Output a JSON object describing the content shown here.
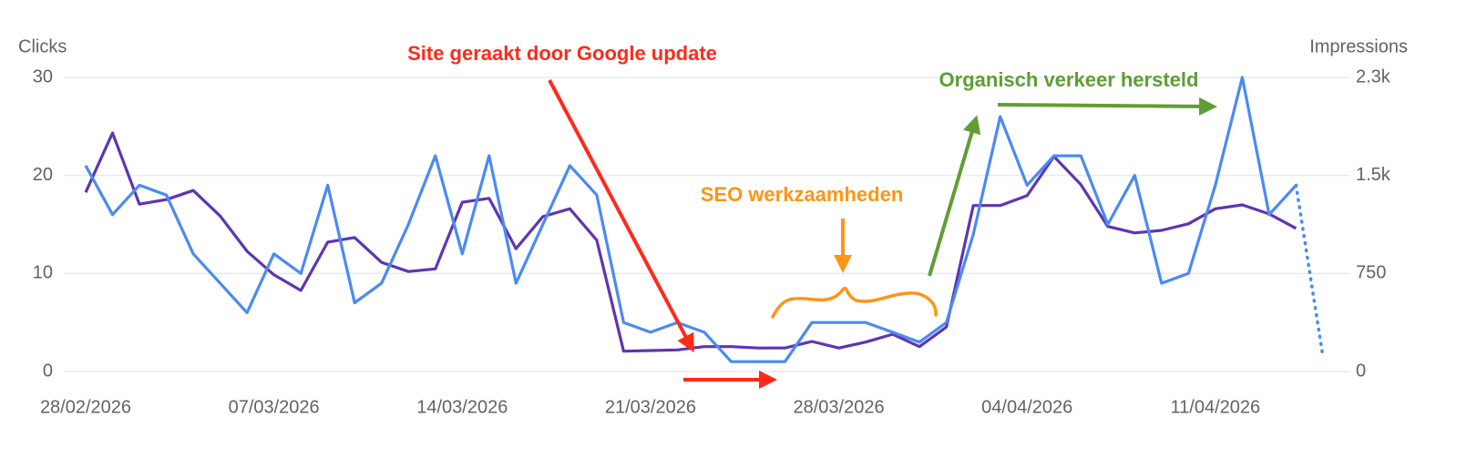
{
  "chart_data": {
    "type": "line",
    "y_title": "Clicks",
    "y2_title": "Impressions",
    "x": [
      "28/02/2026",
      "01/03/2026",
      "02/03/2026",
      "03/03/2026",
      "04/03/2026",
      "05/03/2026",
      "06/03/2026",
      "07/03/2026",
      "08/03/2026",
      "09/03/2026",
      "10/03/2026",
      "11/03/2026",
      "12/03/2026",
      "13/03/2026",
      "14/03/2026",
      "15/03/2026",
      "16/03/2026",
      "17/03/2026",
      "18/03/2026",
      "19/03/2026",
      "20/03/2026",
      "21/03/2026",
      "22/03/2026",
      "23/03/2026",
      "24/03/2026",
      "25/03/2026",
      "26/03/2026",
      "27/03/2026",
      "28/03/2026",
      "29/03/2026",
      "30/03/2026",
      "31/03/2026",
      "01/04/2026",
      "02/04/2026",
      "03/04/2026",
      "04/04/2026",
      "05/04/2026",
      "06/04/2026",
      "07/04/2026",
      "08/04/2026",
      "09/04/2026",
      "10/04/2026",
      "11/04/2026",
      "12/04/2026",
      "13/04/2026",
      "14/04/2026",
      "15/04/2026"
    ],
    "xticks": [
      "28/02/2026",
      "07/03/2026",
      "14/03/2026",
      "21/03/2026",
      "28/03/2026",
      "04/04/2026",
      "11/04/2026"
    ],
    "series": [
      {
        "name": "Clicks",
        "color": "#4a8af4",
        "axis": "y",
        "last_point_partial": true,
        "values": [
          21,
          16,
          19,
          18,
          12,
          9,
          6,
          12,
          10,
          19,
          7,
          9,
          15,
          22,
          12,
          22,
          9,
          15,
          21,
          18,
          5,
          4,
          5,
          4,
          1,
          1,
          1,
          5,
          5,
          5,
          4,
          3,
          5,
          14,
          26,
          19,
          22,
          22,
          15,
          20,
          9,
          10,
          19,
          30,
          16,
          19,
          1.5
        ]
      },
      {
        "name": "Impressions",
        "color": "#5e35b1",
        "axis": "y2",
        "values": [
          1370,
          1825,
          1280,
          1315,
          1385,
          1190,
          920,
          740,
          620,
          990,
          1025,
          835,
          765,
          785,
          1295,
          1325,
          940,
          1185,
          1245,
          1005,
          155,
          160,
          165,
          190,
          190,
          180,
          180,
          230,
          180,
          225,
          285,
          190,
          340,
          1270,
          1270,
          1345,
          1645,
          1430,
          1110,
          1060,
          1080,
          1130,
          1245,
          1275,
          1205,
          1095,
          null
        ]
      }
    ],
    "ylim": [
      0,
      30
    ],
    "yticks": [
      0,
      10,
      20,
      30
    ],
    "y2lim": [
      0,
      2250
    ],
    "y2ticks": [
      0,
      750,
      {
        "value": 1500,
        "label": "1.5k"
      },
      {
        "value": 2250,
        "label": "2.3k"
      }
    ],
    "grid": true,
    "annotations": [
      {
        "text": "Site geraakt door Google update",
        "color": "#ff2a1a"
      },
      {
        "text": "SEO werkzaamheden",
        "color": "#ff9416"
      },
      {
        "text": "Organisch verkeer hersteld",
        "color": "#5f9e34"
      }
    ]
  }
}
